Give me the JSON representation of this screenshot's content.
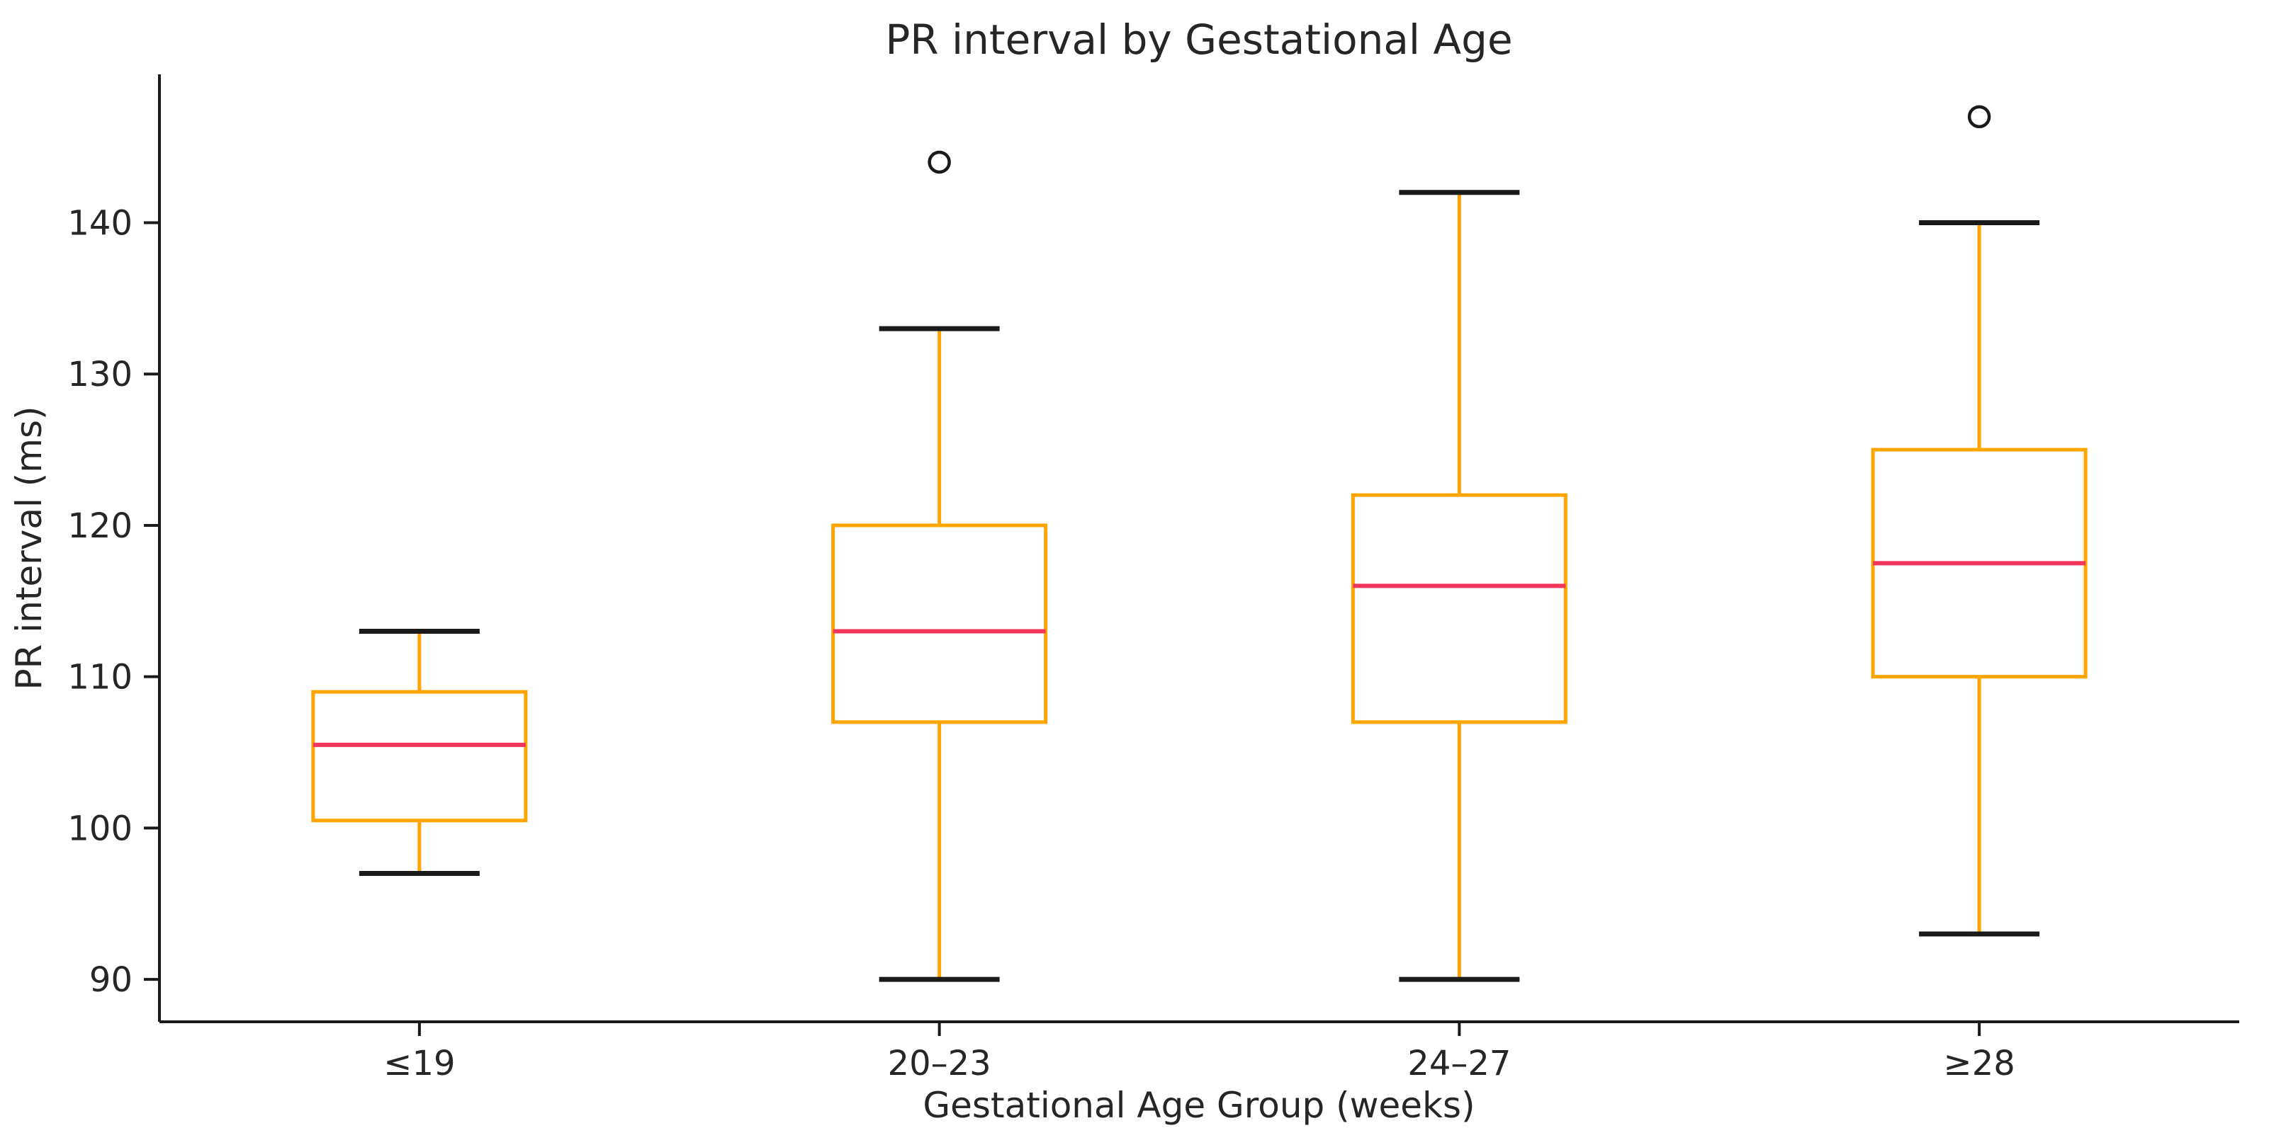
{
  "chart_data": {
    "type": "box",
    "title": "PR interval by Gestational Age",
    "xlabel": "Gestational Age Group (weeks)",
    "ylabel": "PR interval (ms)",
    "categories": [
      "≤19",
      "20–23",
      "24–27",
      "≥28"
    ],
    "yticks": [
      90,
      100,
      110,
      120,
      130,
      140
    ],
    "ylim": [
      87.2,
      149.8
    ],
    "grid": false,
    "legend": "none",
    "groups": [
      {
        "label": "≤19",
        "whisker_low": 97,
        "q1": 100.5,
        "median": 105.5,
        "q3": 109,
        "whisker_high": 113,
        "outliers": []
      },
      {
        "label": "20–23",
        "whisker_low": 90,
        "q1": 107,
        "median": 113,
        "q3": 120,
        "whisker_high": 133,
        "outliers": [
          144
        ]
      },
      {
        "label": "24–27",
        "whisker_low": 90,
        "q1": 107,
        "median": 116,
        "q3": 122,
        "whisker_high": 142,
        "outliers": []
      },
      {
        "label": "≥28",
        "whisker_low": 93,
        "q1": 110,
        "median": 117.5,
        "q3": 125,
        "whisker_high": 140,
        "outliers": [
          147
        ]
      }
    ],
    "colors": {
      "box": "#ffa500",
      "whisker": "#ffa500",
      "median": "#f2355b",
      "cap": "#1a1a1a",
      "outlier": "#1a1a1a",
      "axis": "#1a1a1a",
      "text": "#262626",
      "background": "#ffffff"
    }
  }
}
